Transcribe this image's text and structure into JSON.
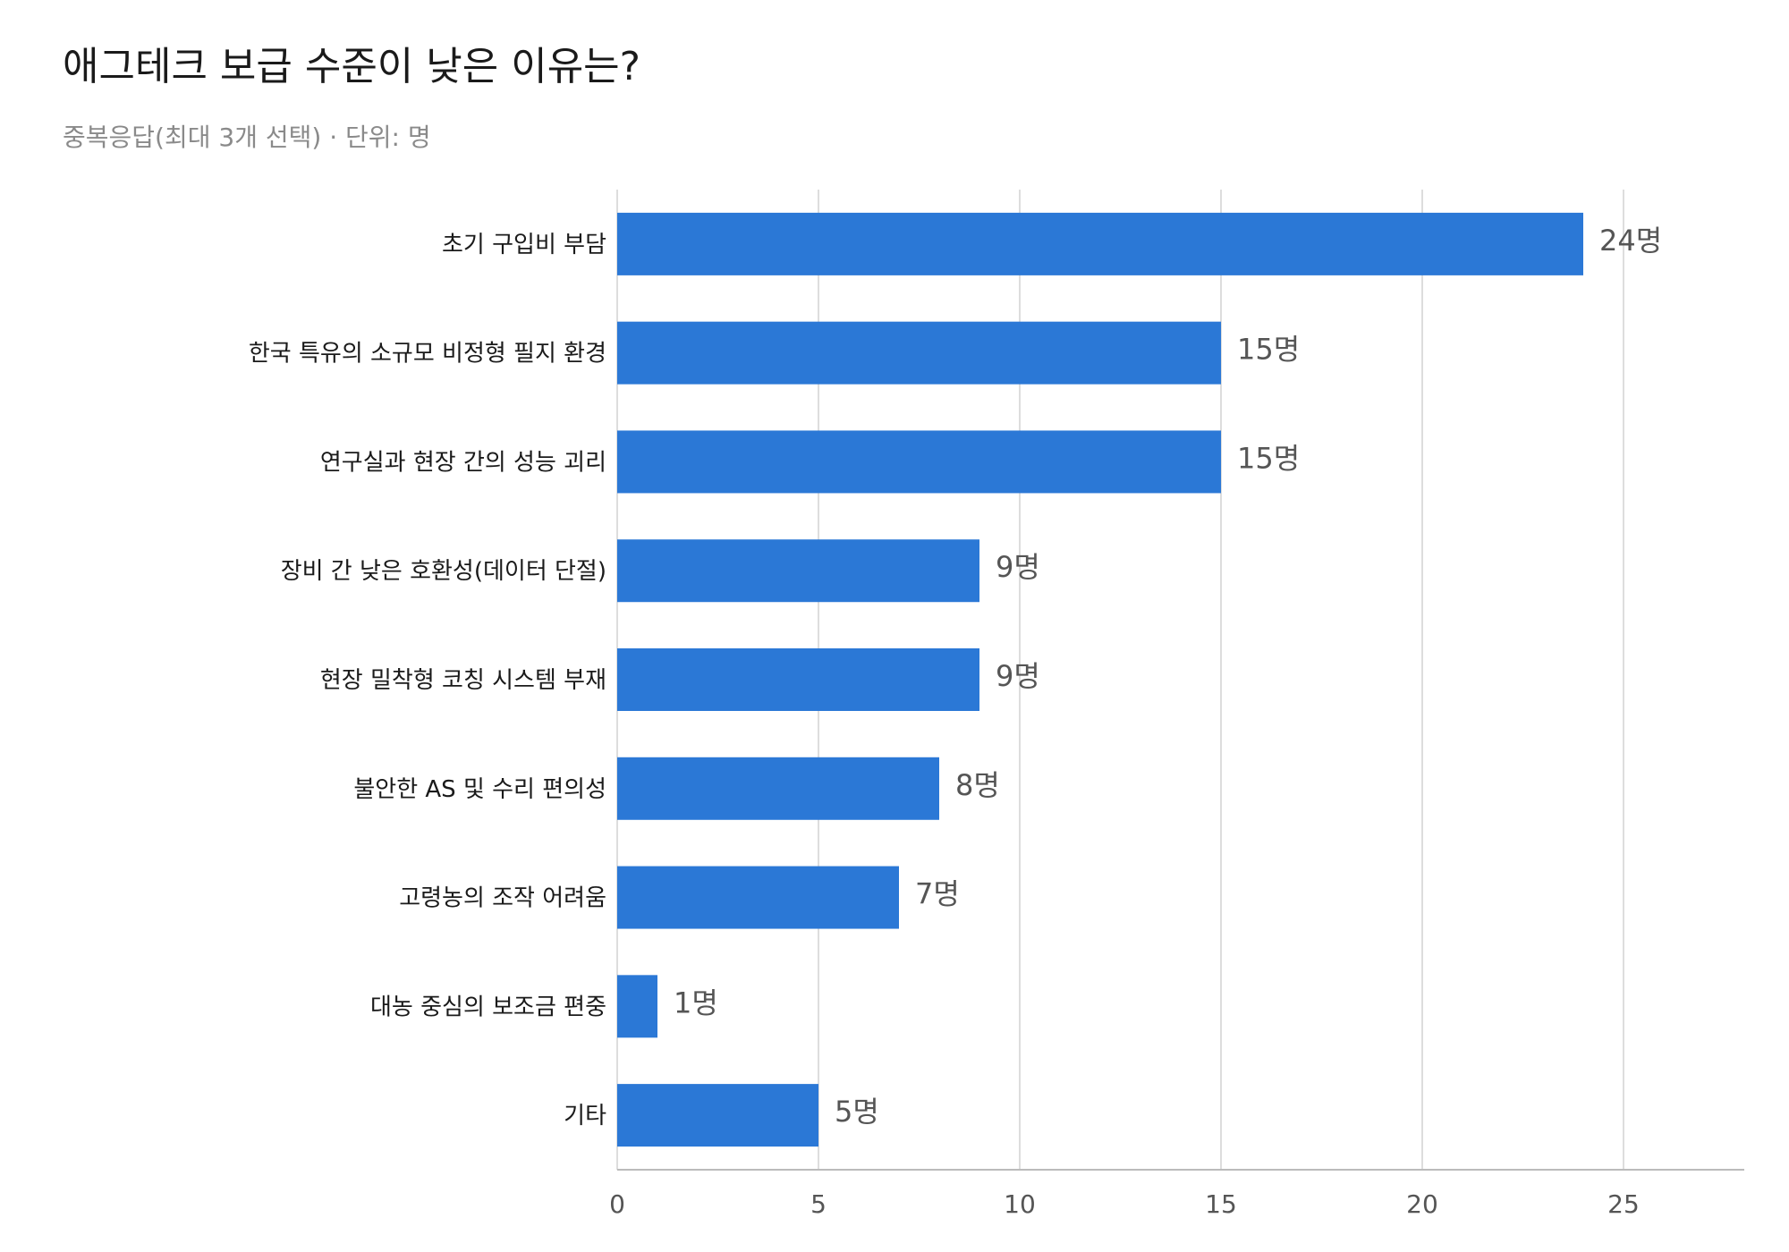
{
  "chart_data": {
    "type": "bar",
    "orientation": "horizontal",
    "title": "애그테크 보급 수준이 낮은 이유는?",
    "subtitle": "중복응답(최대 3개 선택) · 단위: 명",
    "categories": [
      "초기 구입비 부담",
      "한국 특유의 소규모 비정형 필지 환경",
      "연구실과 현장 간의 성능 괴리",
      "장비 간 낮은 호환성(데이터 단절)",
      "현장 밀착형 코칭 시스템 부재",
      "불안한 AS 및 수리 편의성",
      "고령농의 조작 어려움",
      "대농 중심의 보조금 편중",
      "기타"
    ],
    "values": [
      24,
      15,
      15,
      9,
      9,
      8,
      7,
      1,
      5
    ],
    "value_labels": [
      "24명",
      "15명",
      "15명",
      "9명",
      "9명",
      "8명",
      "7명",
      "1명",
      "5명"
    ],
    "x_ticks": [
      "0",
      "5",
      "10",
      "15",
      "20",
      "25"
    ],
    "xlim": [
      0,
      28
    ],
    "grid": true,
    "bar_color": "#2b78d6",
    "grid_color": "#dddddd",
    "axis_color": "#bbbbbb"
  }
}
